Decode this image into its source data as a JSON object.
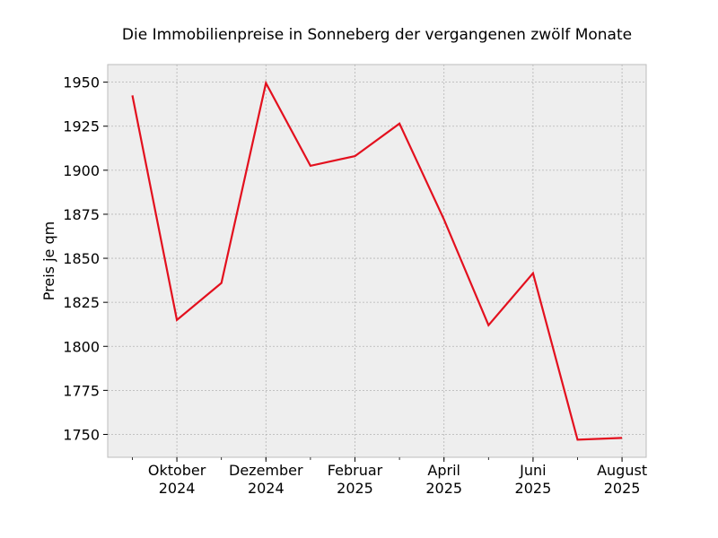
{
  "chart_data": {
    "type": "line",
    "title": "Die Immobilienpreise in Sonneberg der vergangenen zwölf Monate",
    "xlabel": "",
    "ylabel": "Preis je qm",
    "x": [
      "2024-09",
      "2024-10",
      "2024-11",
      "2024-12",
      "2025-01",
      "2025-02",
      "2025-03",
      "2025-04",
      "2025-05",
      "2025-06",
      "2025-07",
      "2025-08"
    ],
    "series": [
      {
        "values": [
          1942.5,
          1815,
          1836,
          1949.5,
          1902.5,
          1908,
          1926.5,
          1872,
          1812,
          1841.5,
          1747,
          1748
        ]
      }
    ],
    "x_ticks": [
      {
        "x": "2024-10",
        "line1": "Oktober",
        "line2": "2024"
      },
      {
        "x": "2024-12",
        "line1": "Dezember",
        "line2": "2024"
      },
      {
        "x": "2025-02",
        "line1": "Februar",
        "line2": "2025"
      },
      {
        "x": "2025-04",
        "line1": "April",
        "line2": "2025"
      },
      {
        "x": "2025-06",
        "line1": "Juni",
        "line2": "2025"
      },
      {
        "x": "2025-08",
        "line1": "August",
        "line2": "2025"
      }
    ],
    "yticks": [
      1750,
      1775,
      1800,
      1825,
      1850,
      1875,
      1900,
      1925,
      1950
    ],
    "ylim": [
      1737,
      1960
    ],
    "grid": true,
    "line_color": "#e3101e",
    "plot_background": "#eeeeee",
    "grid_color": "#b4b4b4"
  }
}
